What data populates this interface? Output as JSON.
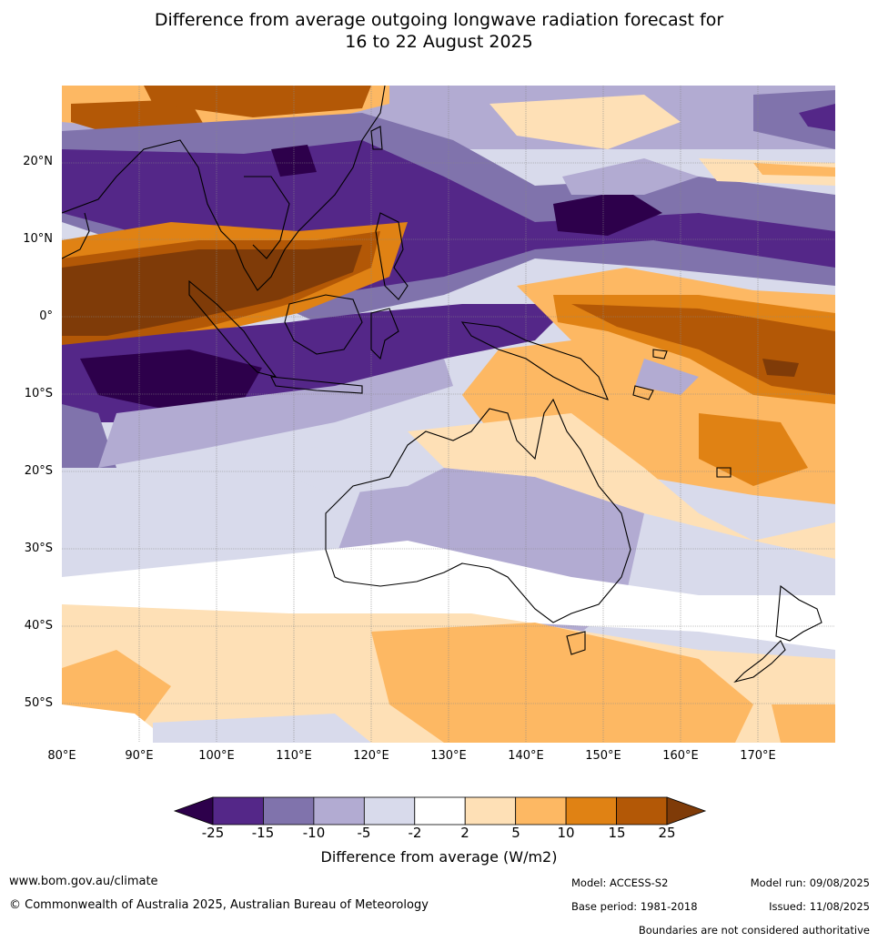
{
  "title_line1": "Difference from average outgoing longwave radiation forecast for",
  "title_line2": "16 to 22 August 2025",
  "lat_labels": [
    "20°N",
    "10°N",
    "0°",
    "10°S",
    "20°S",
    "30°S",
    "40°S",
    "50°S"
  ],
  "lon_labels": [
    "80°E",
    "90°E",
    "100°E",
    "110°E",
    "120°E",
    "130°E",
    "140°E",
    "150°E",
    "160°E",
    "170°E"
  ],
  "colorbar": {
    "ticks": [
      "-25",
      "-15",
      "-10",
      "-5",
      "-2",
      "2",
      "5",
      "10",
      "15",
      "25"
    ],
    "colors": [
      "#2d004b",
      "#542788",
      "#8073ac",
      "#b2abd2",
      "#d8daeb",
      "#ffffff",
      "#fee0b6",
      "#fdb863",
      "#e08214",
      "#b35806",
      "#7f3b08"
    ],
    "label": "Difference from average (W/m2)"
  },
  "footer": {
    "url": "www.bom.gov.au/climate",
    "copyright": "© Commonwealth of Australia 2025, Australian Bureau of Meteorology",
    "model": "Model: ACCESS-S2",
    "base_period": "Base period: 1981-2018",
    "model_run": "Model run: 09/08/2025",
    "issued": "Issued: 11/08/2025",
    "disclaimer": "Boundaries are not considered authoritative"
  }
}
